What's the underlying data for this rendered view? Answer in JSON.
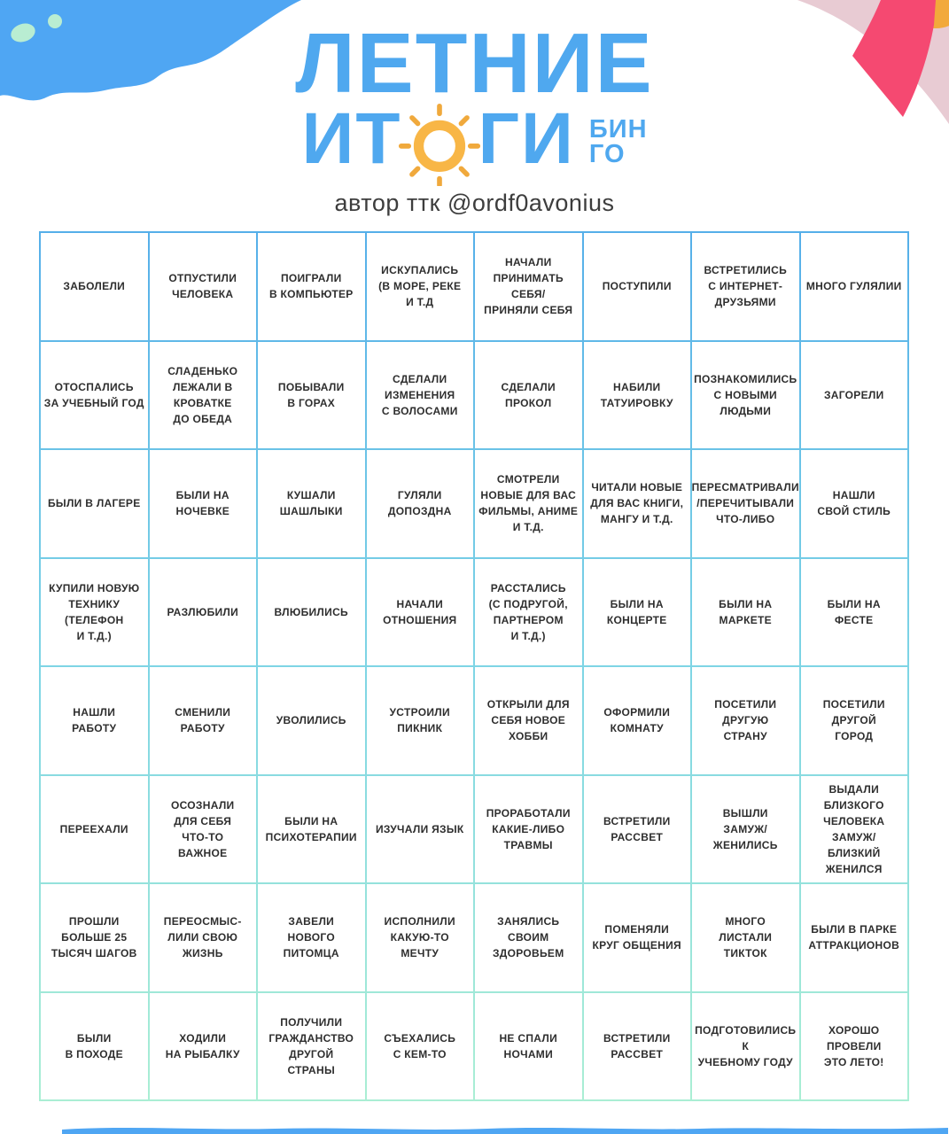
{
  "header": {
    "title_line1": "ЛЕТНИЕ",
    "title_line2_left": "ИТ",
    "title_line2_right": "ГИ",
    "bingo_top": "БИН",
    "bingo_bottom": "ГО",
    "author": "автор ттк @ordf0avonius"
  },
  "icons": {
    "sun": "sun-icon"
  },
  "colors": {
    "title_blue": "#4FA8EF",
    "sun_orange": "#F8B646",
    "wave_blue": "#4FA6F3",
    "mint_blob": "#B9EDD2",
    "pale_pink": "#E8CBD3",
    "hot_pink": "#F54971",
    "fan_orange": "#F2A93B",
    "grid_line_top": "#55AFE9",
    "grid_line_bottom": "#AAEED4",
    "cell_text": "#2E2E2E"
  },
  "grid": {
    "rows": [
      [
        "ЗАБОЛЕЛИ",
        "ОТПУСТИЛИ\nЧЕЛОВЕКА",
        "ПОИГРАЛИ\nВ КОМПЬЮТЕР",
        "ИСКУПАЛИСЬ\n(В МОРЕ, РЕКЕ\nИ Т.Д",
        "НАЧАЛИ\nПРИНИМАТЬ\nСЕБЯ/\nПРИНЯЛИ СЕБЯ",
        "ПОСТУПИЛИ",
        "ВСТРЕТИЛИСЬ\nС ИНТЕРНЕТ-\nДРУЗЬЯМИ",
        "МНОГО ГУЛЯЛИИ"
      ],
      [
        "ОТОСПАЛИСЬ\nЗА УЧЕБНЫЙ ГОД",
        "СЛАДЕНЬКО\nЛЕЖАЛИ В\nКРОВАТКЕ\nДО ОБЕДА",
        "ПОБЫВАЛИ\nВ ГОРАХ",
        "СДЕЛАЛИ\nИЗМЕНЕНИЯ\nС ВОЛОСАМИ",
        "СДЕЛАЛИ\nПРОКОЛ",
        "НАБИЛИ\nТАТУИРОВКУ",
        "ПОЗНАКОМИЛИСЬ\nС НОВЫМИ\nЛЮДЬМИ",
        "ЗАГОРЕЛИ"
      ],
      [
        "БЫЛИ В ЛАГЕРЕ",
        "БЫЛИ НА\nНОЧЕВКЕ",
        "КУШАЛИ\nШАШЛЫКИ",
        "ГУЛЯЛИ\nДОПОЗДНА",
        "СМОТРЕЛИ\nНОВЫЕ ДЛЯ ВАС\nФИЛЬМЫ, АНИМЕ\nИ Т.Д.",
        "ЧИТАЛИ НОВЫЕ\nДЛЯ ВАС КНИГИ,\nМАНГУ И Т.Д.",
        "ПЕРЕСМАТРИВАЛИ\n/ПЕРЕЧИТЫВАЛИ\nЧТО-ЛИБО",
        "НАШЛИ\nСВОЙ СТИЛЬ"
      ],
      [
        "КУПИЛИ НОВУЮ\nТЕХНИКУ\n(ТЕЛЕФОН\nИ Т.Д.)",
        "РАЗЛЮБИЛИ",
        "ВЛЮБИЛИСЬ",
        "НАЧАЛИ\nОТНОШЕНИЯ",
        "РАССТАЛИСЬ\n(С ПОДРУГОЙ,\nПАРТНЕРОМ\nИ Т.Д.)",
        "БЫЛИ НА\nКОНЦЕРТЕ",
        "БЫЛИ НА\nМАРКЕТЕ",
        "БЫЛИ НА\nФЕСТЕ"
      ],
      [
        "НАШЛИ\nРАБОТУ",
        "СМЕНИЛИ\nРАБОТУ",
        "УВОЛИЛИСЬ",
        "УСТРОИЛИ\nПИКНИК",
        "ОТКРЫЛИ ДЛЯ\nСЕБЯ НОВОЕ\nХОББИ",
        "ОФОРМИЛИ\nКОМНАТУ",
        "ПОСЕТИЛИ\nДРУГУЮ\nСТРАНУ",
        "ПОСЕТИЛИ\nДРУГОЙ\nГОРОД"
      ],
      [
        "ПЕРЕЕХАЛИ",
        "ОСОЗНАЛИ\nДЛЯ СЕБЯ\nЧТО-ТО\nВАЖНОЕ",
        "БЫЛИ НА\nПСИХОТЕРАПИИ",
        "ИЗУЧАЛИ ЯЗЫК",
        "ПРОРАБОТАЛИ\nКАКИЕ-ЛИБО\nТРАВМЫ",
        "ВСТРЕТИЛИ\nРАССВЕТ",
        "ВЫШЛИ\nЗАМУЖ/\nЖЕНИЛИСЬ",
        "ВЫДАЛИ\nБЛИЗКОГО\nЧЕЛОВЕКА\nЗАМУЖ/\nБЛИЗКИЙ\nЖЕНИЛСЯ"
      ],
      [
        "ПРОШЛИ\nБОЛЬШЕ 25\nТЫСЯЧ ШАГОВ",
        "ПЕРЕОСМЫС-\nЛИЛИ СВОЮ\nЖИЗНЬ",
        "ЗАВЕЛИ\nНОВОГО\nПИТОМЦА",
        "ИСПОЛНИЛИ\nКАКУЮ-ТО\nМЕЧТУ",
        "ЗАНЯЛИСЬ\nСВОИМ\nЗДОРОВЬЕМ",
        "ПОМЕНЯЛИ\nКРУГ ОБЩЕНИЯ",
        "МНОГО\nЛИСТАЛИ\nТИКТОК",
        "БЫЛИ В ПАРКЕ\nАТТРАКЦИОНОВ"
      ],
      [
        "БЫЛИ\nВ ПОХОДЕ",
        "ХОДИЛИ\nНА РЫБАЛКУ",
        "ПОЛУЧИЛИ\nГРАЖДАНСТВО\nДРУГОЙ\nСТРАНЫ",
        "СЪЕХАЛИСЬ\nС КЕМ-ТО",
        "НЕ СПАЛИ\nНОЧАМИ",
        "ВСТРЕТИЛИ\nРАССВЕТ",
        "ПОДГОТОВИЛИСЬ К\nУЧЕБНОМУ ГОДУ",
        "ХОРОШО ПРОВЕЛИ\nЭТО ЛЕТО!"
      ]
    ]
  }
}
